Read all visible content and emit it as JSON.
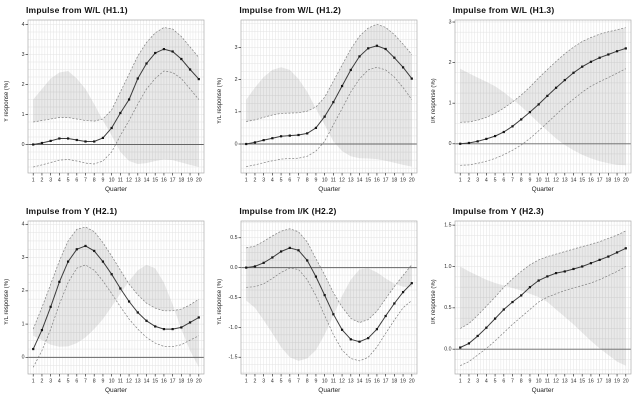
{
  "figure": {
    "xlabel": "Quarter",
    "x_tick_labels": [
      "1",
      "2",
      "3",
      "4",
      "5",
      "6",
      "7",
      "8",
      "9",
      "10",
      "11",
      "12",
      "13",
      "14",
      "15",
      "16",
      "17",
      "18",
      "19",
      "20"
    ]
  },
  "colors": {
    "line": "#3c3c3c",
    "marker": "#141414",
    "band_fill": "rgba(0,0,0,0.085)",
    "band_edge": "#7f7f7f",
    "grid": "#e3e3e3",
    "frame": "#ababab",
    "zero_line": "#666666",
    "tick_text": "#2a2a2a"
  },
  "chart_data": [
    {
      "type": "line",
      "title": "Impulse from W/L (H1.1)",
      "ylabel": "Y response (%)",
      "xlabel": "Quarter",
      "x": [
        1,
        2,
        3,
        4,
        5,
        6,
        7,
        8,
        9,
        10,
        11,
        12,
        13,
        14,
        15,
        16,
        17,
        18,
        19,
        20
      ],
      "series": [
        {
          "name": "response",
          "values": [
            0.0,
            0.05,
            0.12,
            0.2,
            0.2,
            0.15,
            0.1,
            0.1,
            0.22,
            0.55,
            1.05,
            1.5,
            2.2,
            2.7,
            3.05,
            3.18,
            3.1,
            2.85,
            2.5,
            2.18
          ]
        },
        {
          "name": "upper_band",
          "values": [
            0.75,
            0.8,
            0.85,
            0.9,
            0.9,
            0.85,
            0.8,
            0.78,
            0.85,
            1.15,
            1.75,
            2.35,
            2.95,
            3.4,
            3.72,
            3.9,
            3.85,
            3.6,
            3.25,
            2.9
          ]
        },
        {
          "name": "lower_band",
          "values": [
            -0.75,
            -0.68,
            -0.6,
            -0.52,
            -0.5,
            -0.55,
            -0.62,
            -0.65,
            -0.55,
            -0.25,
            0.3,
            0.8,
            1.35,
            1.85,
            2.2,
            2.45,
            2.4,
            2.2,
            1.85,
            1.5
          ]
        }
      ],
      "ylim": [
        -0.95,
        4.15
      ],
      "yticks": [
        0,
        1,
        2,
        3,
        4
      ],
      "ytick_labels": [
        "0",
        "1",
        "2",
        "3",
        "4"
      ],
      "grid": true,
      "zero_line": true,
      "legend": "none"
    },
    {
      "type": "line",
      "title": "Impulse from W/L (H1.2)",
      "ylabel": "Y/L response (%)",
      "xlabel": "Quarter",
      "x": [
        1,
        2,
        3,
        4,
        5,
        6,
        7,
        8,
        9,
        10,
        11,
        12,
        13,
        14,
        15,
        16,
        17,
        18,
        19,
        20
      ],
      "series": [
        {
          "name": "response",
          "values": [
            0.0,
            0.05,
            0.12,
            0.18,
            0.24,
            0.26,
            0.28,
            0.33,
            0.5,
            0.85,
            1.3,
            1.8,
            2.3,
            2.72,
            2.97,
            3.05,
            2.95,
            2.68,
            2.38,
            2.03
          ]
        },
        {
          "name": "upper_band",
          "values": [
            0.7,
            0.75,
            0.83,
            0.9,
            0.95,
            0.96,
            0.97,
            1.02,
            1.15,
            1.45,
            1.95,
            2.45,
            2.95,
            3.35,
            3.6,
            3.72,
            3.62,
            3.4,
            3.1,
            2.78
          ]
        },
        {
          "name": "lower_band",
          "values": [
            -0.7,
            -0.65,
            -0.58,
            -0.52,
            -0.47,
            -0.45,
            -0.44,
            -0.38,
            -0.22,
            0.08,
            0.6,
            1.1,
            1.62,
            2.02,
            2.3,
            2.38,
            2.3,
            2.08,
            1.75,
            1.38
          ]
        }
      ],
      "ylim": [
        -0.9,
        3.85
      ],
      "yticks": [
        0,
        1,
        2,
        3
      ],
      "ytick_labels": [
        "0",
        "1",
        "2",
        "3"
      ],
      "grid": true,
      "zero_line": true,
      "legend": "none"
    },
    {
      "type": "line",
      "title": "Impulse from W/L (H1.3)",
      "ylabel": "I/K response (%)",
      "xlabel": "Quarter",
      "x": [
        1,
        2,
        3,
        4,
        5,
        6,
        7,
        8,
        9,
        10,
        11,
        12,
        13,
        14,
        15,
        16,
        17,
        18,
        19,
        20
      ],
      "series": [
        {
          "name": "response",
          "values": [
            0.0,
            0.02,
            0.06,
            0.12,
            0.19,
            0.29,
            0.43,
            0.6,
            0.78,
            0.97,
            1.18,
            1.38,
            1.57,
            1.75,
            1.9,
            2.02,
            2.12,
            2.2,
            2.28,
            2.35
          ]
        },
        {
          "name": "upper_band",
          "values": [
            0.53,
            0.54,
            0.58,
            0.65,
            0.75,
            0.88,
            1.03,
            1.2,
            1.4,
            1.62,
            1.83,
            2.03,
            2.22,
            2.38,
            2.52,
            2.62,
            2.7,
            2.76,
            2.81,
            2.86
          ]
        },
        {
          "name": "lower_band",
          "values": [
            -0.53,
            -0.52,
            -0.48,
            -0.43,
            -0.36,
            -0.27,
            -0.16,
            -0.03,
            0.13,
            0.32,
            0.52,
            0.72,
            0.92,
            1.1,
            1.27,
            1.42,
            1.53,
            1.63,
            1.74,
            1.85
          ]
        }
      ],
      "ylim": [
        -0.72,
        3.05
      ],
      "yticks": [
        0,
        1,
        2,
        3
      ],
      "ytick_labels": [
        "0",
        "1",
        "2",
        "3"
      ],
      "grid": true,
      "zero_line": true,
      "legend": "none"
    },
    {
      "type": "line",
      "title": "Impulse from Y (H2.1)",
      "ylabel": "Y/L response (%)",
      "xlabel": "Quarter",
      "x": [
        1,
        2,
        3,
        4,
        5,
        6,
        7,
        8,
        9,
        10,
        11,
        12,
        13,
        14,
        15,
        16,
        17,
        18,
        19,
        20
      ],
      "series": [
        {
          "name": "response",
          "values": [
            0.25,
            0.82,
            1.52,
            2.27,
            2.88,
            3.25,
            3.35,
            3.2,
            2.88,
            2.5,
            2.07,
            1.68,
            1.35,
            1.1,
            0.93,
            0.85,
            0.85,
            0.9,
            1.05,
            1.2
          ]
        },
        {
          "name": "upper_band",
          "values": [
            0.85,
            1.5,
            2.2,
            2.9,
            3.5,
            3.85,
            3.92,
            3.78,
            3.45,
            3.05,
            2.62,
            2.2,
            1.88,
            1.63,
            1.48,
            1.4,
            1.4,
            1.45,
            1.58,
            1.75
          ]
        },
        {
          "name": "lower_band",
          "values": [
            -0.3,
            0.2,
            0.85,
            1.6,
            2.25,
            2.68,
            2.78,
            2.62,
            2.3,
            1.92,
            1.52,
            1.15,
            0.85,
            0.6,
            0.43,
            0.33,
            0.32,
            0.38,
            0.52,
            0.65
          ]
        }
      ],
      "ylim": [
        -0.5,
        4.1
      ],
      "yticks": [
        0,
        1,
        2,
        3,
        4
      ],
      "ytick_labels": [
        "0",
        "1",
        "2",
        "3",
        "4"
      ],
      "grid": true,
      "zero_line": true,
      "legend": "none"
    },
    {
      "type": "line",
      "title": "Impulse from I/K (H2.2)",
      "ylabel": "Y/L response (%)",
      "xlabel": "Quarter",
      "x": [
        1,
        2,
        3,
        4,
        5,
        6,
        7,
        8,
        9,
        10,
        11,
        12,
        13,
        14,
        15,
        16,
        17,
        18,
        19,
        20
      ],
      "series": [
        {
          "name": "response",
          "values": [
            0.0,
            0.02,
            0.08,
            0.17,
            0.27,
            0.33,
            0.29,
            0.12,
            -0.15,
            -0.46,
            -0.78,
            -1.04,
            -1.2,
            -1.24,
            -1.18,
            -1.03,
            -0.81,
            -0.6,
            -0.41,
            -0.26
          ]
        },
        {
          "name": "upper_band",
          "values": [
            0.33,
            0.36,
            0.44,
            0.53,
            0.61,
            0.65,
            0.6,
            0.43,
            0.15,
            -0.12,
            -0.42,
            -0.66,
            -0.85,
            -0.92,
            -0.87,
            -0.73,
            -0.52,
            -0.32,
            -0.13,
            0.05
          ]
        },
        {
          "name": "lower_band",
          "values": [
            -0.33,
            -0.32,
            -0.27,
            -0.18,
            -0.08,
            -0.01,
            -0.03,
            -0.2,
            -0.47,
            -0.8,
            -1.12,
            -1.38,
            -1.52,
            -1.56,
            -1.5,
            -1.33,
            -1.1,
            -0.88,
            -0.67,
            -0.55
          ]
        }
      ],
      "ylim": [
        -1.78,
        0.78
      ],
      "yticks": [
        -1.5,
        -1.0,
        -0.5,
        0.0,
        0.5
      ],
      "ytick_labels": [
        "-1.5",
        "-1.0",
        "-0.5",
        "0.0",
        "0.5"
      ],
      "grid": true,
      "zero_line": true,
      "legend": "none"
    },
    {
      "type": "line",
      "title": "Impulse from Y (H2.3)",
      "ylabel": "I/K response (%)",
      "xlabel": "Quarter",
      "x": [
        1,
        2,
        3,
        4,
        5,
        6,
        7,
        8,
        9,
        10,
        11,
        12,
        13,
        14,
        15,
        16,
        17,
        18,
        19,
        20
      ],
      "series": [
        {
          "name": "response",
          "values": [
            0.02,
            0.07,
            0.16,
            0.26,
            0.37,
            0.48,
            0.57,
            0.65,
            0.75,
            0.83,
            0.88,
            0.92,
            0.94,
            0.97,
            1.0,
            1.04,
            1.08,
            1.12,
            1.17,
            1.22
          ]
        },
        {
          "name": "upper_band",
          "values": [
            0.25,
            0.31,
            0.41,
            0.52,
            0.63,
            0.75,
            0.85,
            0.94,
            1.02,
            1.08,
            1.12,
            1.15,
            1.18,
            1.21,
            1.24,
            1.27,
            1.3,
            1.34,
            1.38,
            1.43
          ]
        },
        {
          "name": "lower_band",
          "values": [
            -0.2,
            -0.15,
            -0.07,
            0.01,
            0.1,
            0.2,
            0.3,
            0.39,
            0.48,
            0.57,
            0.63,
            0.67,
            0.71,
            0.74,
            0.77,
            0.8,
            0.84,
            0.89,
            0.94,
            1.0
          ]
        }
      ],
      "ylim": [
        -0.3,
        1.55
      ],
      "yticks": [
        0.0,
        0.5,
        1.0,
        1.5
      ],
      "ytick_labels": [
        "0.0",
        "0.5",
        "1.0",
        "1.5"
      ],
      "grid": true,
      "zero_line": true,
      "legend": "none"
    }
  ]
}
